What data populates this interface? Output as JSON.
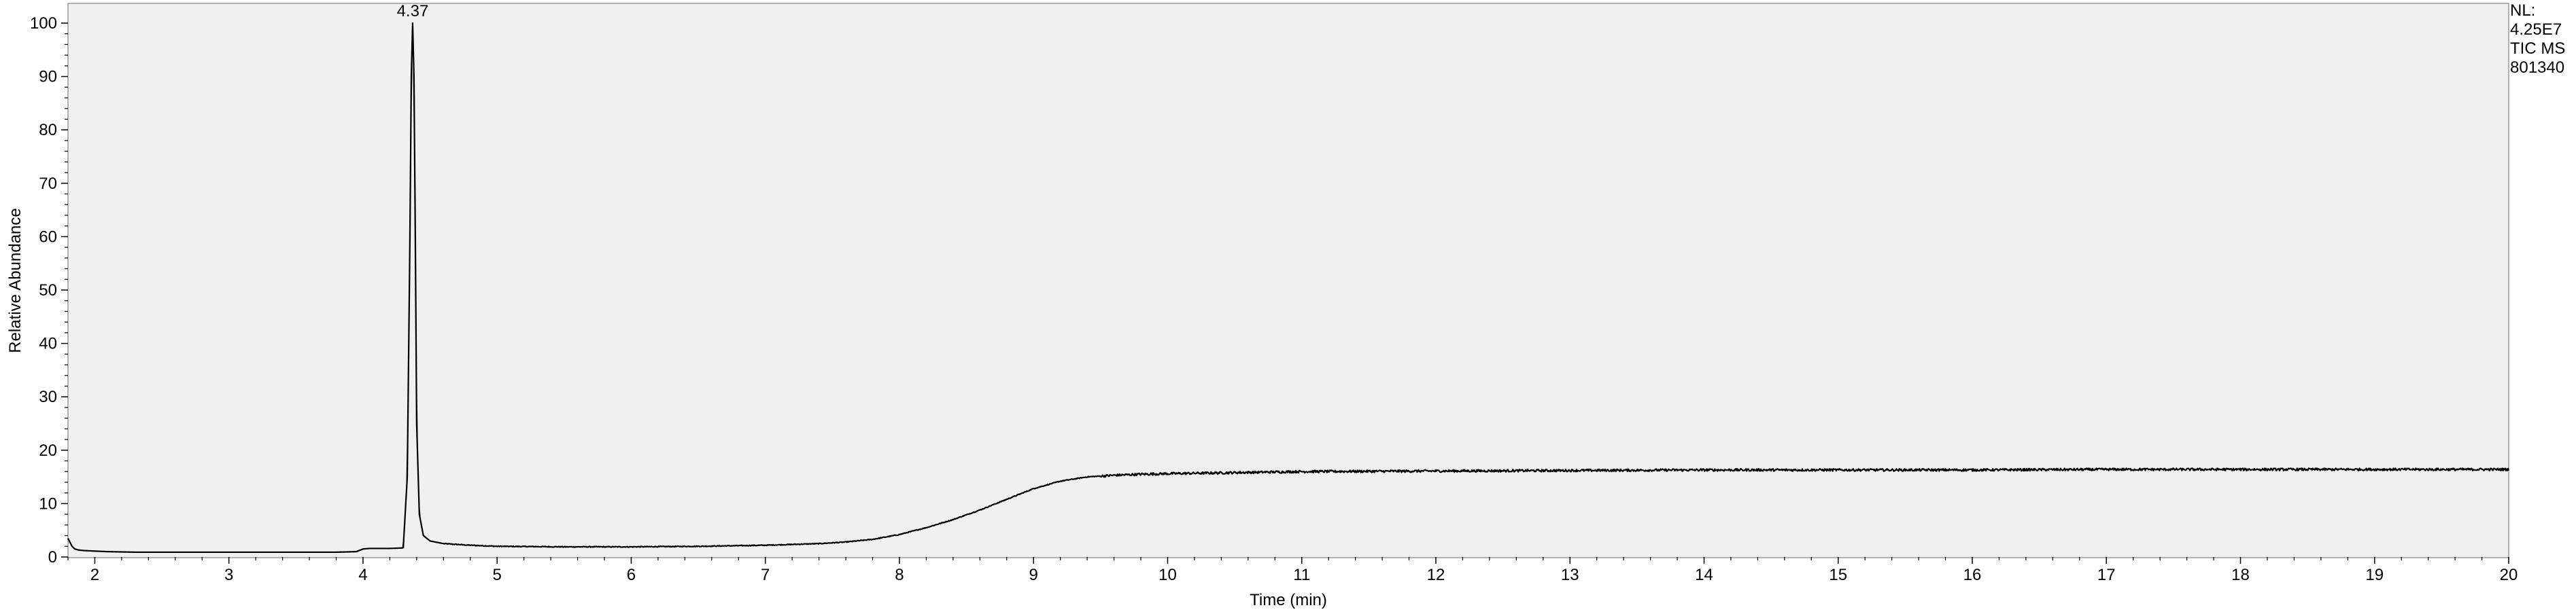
{
  "chart_data": {
    "type": "line",
    "xlabel": "Time (min)",
    "ylabel": "Relative Abundance",
    "xlim": [
      1.8,
      20
    ],
    "ylim": [
      0,
      100
    ],
    "x_ticks": [
      "2",
      "3",
      "4",
      "5",
      "6",
      "7",
      "8",
      "9",
      "10",
      "11",
      "12",
      "13",
      "14",
      "15",
      "16",
      "17",
      "18",
      "19",
      "20"
    ],
    "y_ticks": [
      "0",
      "10",
      "20",
      "30",
      "40",
      "50",
      "60",
      "70",
      "80",
      "90",
      "100"
    ],
    "grid": false,
    "peak_annotations": [
      {
        "x": 4.37,
        "y": 100,
        "label": "4.37"
      }
    ],
    "series": [
      {
        "x": [
          1.8,
          1.81,
          1.83,
          1.85,
          1.88,
          1.92,
          2.0,
          2.1,
          2.3,
          2.6,
          3.0,
          3.5,
          3.8,
          3.95,
          4.0,
          4.05,
          4.2,
          4.3,
          4.33,
          4.35,
          4.36,
          4.37,
          4.38,
          4.39,
          4.4,
          4.42,
          4.45,
          4.5,
          4.6,
          4.8,
          5.0,
          5.5,
          6.0,
          6.5,
          7.0,
          7.4,
          7.6,
          7.8,
          8.0,
          8.2,
          8.4,
          8.6,
          8.8,
          9.0,
          9.2,
          9.4,
          9.6,
          9.8,
          10.0,
          10.5,
          11.0,
          12.0,
          13.0,
          14.0,
          15.0,
          16.0,
          17.0,
          18.0,
          19.0,
          20.0
        ],
        "y": [
          3.5,
          3.0,
          2.0,
          1.5,
          1.3,
          1.2,
          1.1,
          1.0,
          0.9,
          0.9,
          0.9,
          0.9,
          0.9,
          1.0,
          1.5,
          1.6,
          1.6,
          1.7,
          15.0,
          60.0,
          90.0,
          100.0,
          90.0,
          60.0,
          25.0,
          8.0,
          4.0,
          3.0,
          2.5,
          2.2,
          2.0,
          1.9,
          1.9,
          2.0,
          2.2,
          2.5,
          2.8,
          3.3,
          4.2,
          5.5,
          7.0,
          8.8,
          10.8,
          12.8,
          14.2,
          15.0,
          15.3,
          15.5,
          15.6,
          15.8,
          16.0,
          16.1,
          16.2,
          16.3,
          16.3,
          16.3,
          16.4,
          16.4,
          16.4,
          16.4
        ]
      }
    ]
  },
  "info_panel": {
    "lines": [
      "NL:",
      "4.25E7",
      "TIC  MS",
      "801340"
    ]
  }
}
